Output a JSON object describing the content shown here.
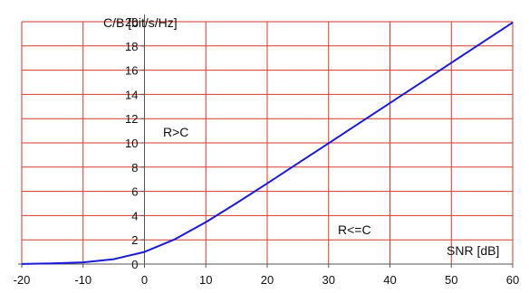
{
  "chart_data": {
    "type": "line",
    "title": "",
    "xlabel": "SNR [dB]",
    "ylabel": "C/B [bit/s/Hz]",
    "xlim": [
      -20,
      60
    ],
    "ylim": [
      0,
      20
    ],
    "grid": true,
    "x_ticks": [
      -20,
      -10,
      0,
      10,
      20,
      30,
      40,
      50,
      60
    ],
    "y_ticks": [
      0,
      2,
      4,
      6,
      8,
      10,
      12,
      14,
      16,
      18,
      20
    ],
    "annotations": [
      {
        "text": "R>C",
        "x": 5,
        "y": 11
      },
      {
        "text": "R<=C",
        "x": 36,
        "y": 2.5
      }
    ],
    "series": [
      {
        "color": "#1a1ad8",
        "x": [
          -20,
          -15,
          -10,
          -5,
          0,
          5,
          10,
          15,
          20,
          25,
          30,
          35,
          40,
          45,
          50,
          55,
          60
        ],
        "y": [
          0.01,
          0.05,
          0.14,
          0.4,
          1.0,
          2.06,
          3.46,
          5.03,
          6.66,
          8.31,
          9.97,
          11.63,
          13.29,
          14.95,
          16.61,
          18.27,
          19.93
        ]
      }
    ]
  },
  "colors": {
    "grid": "#d33a2c",
    "axis": "#555555",
    "line": "#1a1ad8"
  }
}
